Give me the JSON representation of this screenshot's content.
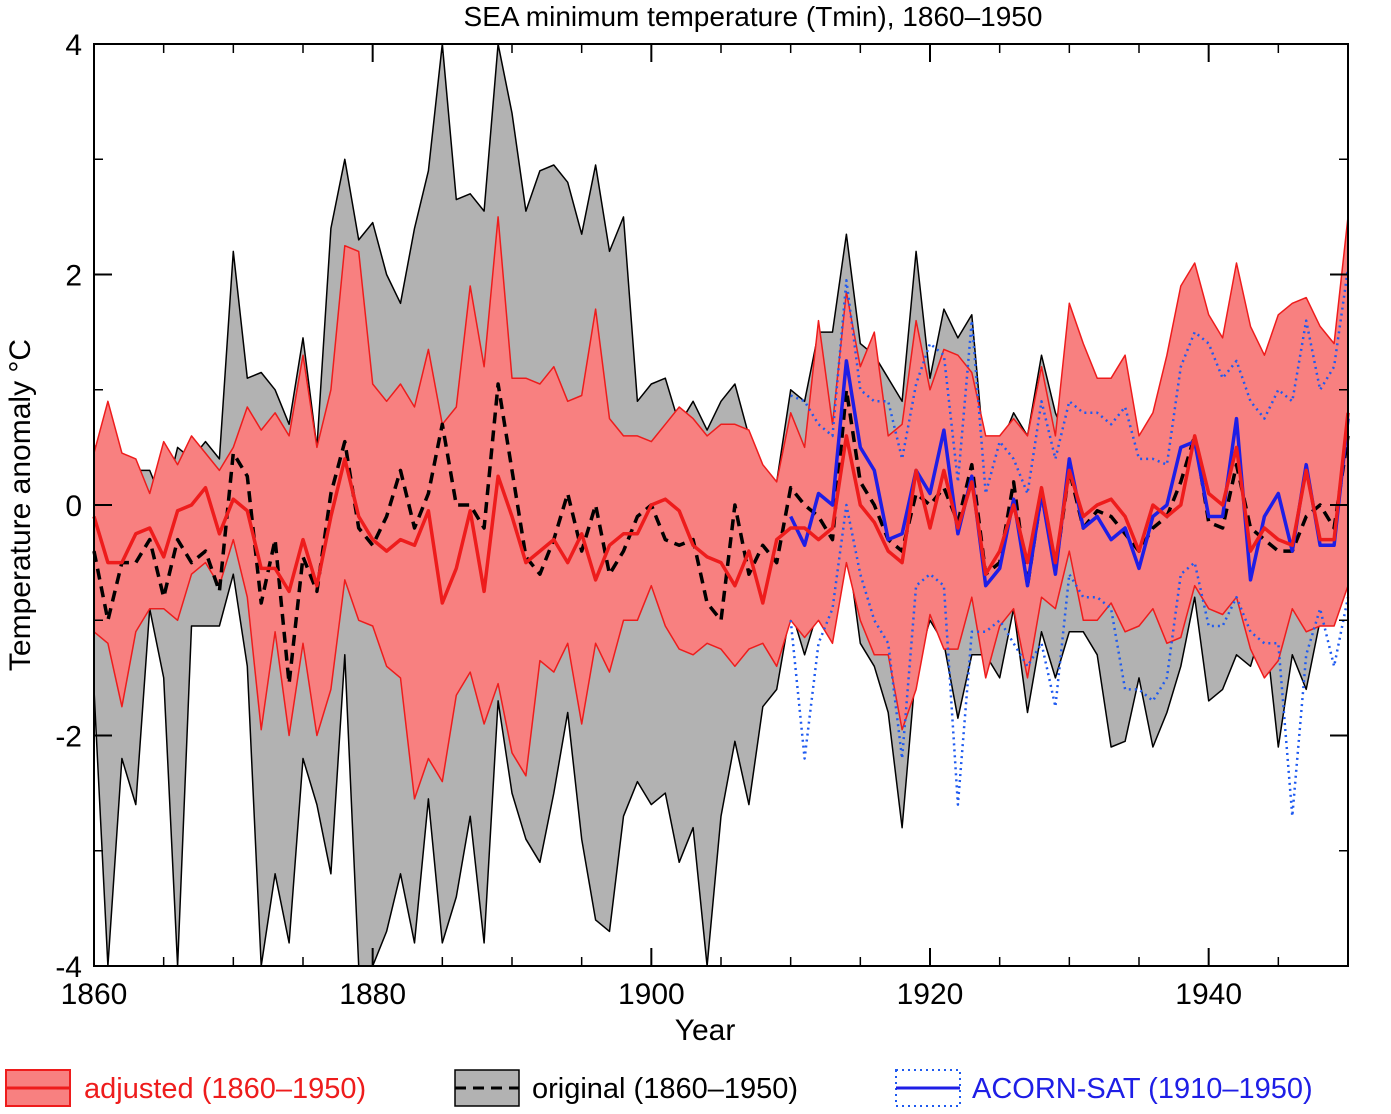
{
  "chart_data": {
    "type": "area",
    "title": "SEA minimum temperature (Tmin), 1860–1950",
    "xlabel": "Year",
    "ylabel": "Temperature anomaly °C",
    "xlim": [
      1860,
      1950
    ],
    "ylim": [
      -4,
      4
    ],
    "xticks": [
      1860,
      1880,
      1900,
      1920,
      1940
    ],
    "xtick_labels": [
      "1860",
      "1880",
      "1900",
      "1920",
      "1940"
    ],
    "yticks": [
      -4,
      -2,
      0,
      2,
      4
    ],
    "ytick_labels": [
      "-4",
      "-2",
      "0",
      "2",
      "4"
    ],
    "grid": false,
    "legend_position": "bottom",
    "legend": [
      {
        "key": "adjusted",
        "label": "adjusted (1860–1950)",
        "color": "#ee1c1c"
      },
      {
        "key": "original",
        "label": "original (1860–1950)",
        "color": "#000000"
      },
      {
        "key": "acorn",
        "label": "ACORN-SAT (1910–1950)",
        "color": "#1e1ee6"
      }
    ],
    "series": [
      {
        "key": "original_range",
        "style": "band",
        "color": "#b2b2b2",
        "x": [
          1860,
          1861,
          1862,
          1863,
          1864,
          1865,
          1866,
          1867,
          1868,
          1869,
          1870,
          1871,
          1872,
          1873,
          1874,
          1875,
          1876,
          1877,
          1878,
          1879,
          1880,
          1881,
          1882,
          1883,
          1884,
          1885,
          1886,
          1887,
          1888,
          1889,
          1890,
          1891,
          1892,
          1893,
          1894,
          1895,
          1896,
          1897,
          1898,
          1899,
          1900,
          1901,
          1902,
          1903,
          1904,
          1905,
          1906,
          1907,
          1908,
          1909,
          1910,
          1911,
          1912,
          1913,
          1914,
          1915,
          1916,
          1917,
          1918,
          1919,
          1920,
          1921,
          1922,
          1923,
          1924,
          1925,
          1926,
          1927,
          1928,
          1929,
          1930,
          1931,
          1932,
          1933,
          1934,
          1935,
          1936,
          1937,
          1938,
          1939,
          1940,
          1941,
          1942,
          1943,
          1944,
          1945,
          1946,
          1947,
          1948,
          1949,
          1950
        ],
        "upper": [
          0.5,
          0.6,
          0.4,
          0.3,
          0.3,
          0.0,
          0.5,
          0.4,
          0.55,
          0.4,
          2.2,
          1.1,
          1.15,
          1.0,
          0.7,
          1.45,
          0.5,
          2.4,
          3.0,
          2.3,
          2.45,
          2.0,
          1.75,
          2.4,
          2.9,
          4.0,
          2.65,
          2.7,
          2.55,
          4.0,
          3.4,
          2.55,
          2.9,
          2.95,
          2.8,
          2.35,
          2.95,
          2.2,
          2.5,
          0.9,
          1.05,
          1.1,
          0.7,
          0.9,
          0.65,
          0.9,
          1.05,
          0.6,
          0.3,
          0.2,
          1.0,
          0.9,
          1.5,
          1.5,
          2.35,
          1.4,
          1.3,
          1.1,
          0.9,
          2.2,
          1.1,
          1.7,
          1.45,
          1.65,
          0.3,
          0.5,
          0.8,
          0.6,
          1.3,
          0.8,
          0.5,
          0.6,
          0.7,
          0.5,
          0.4,
          0.4,
          0.3,
          0.5,
          0.6,
          0.7,
          0.5,
          0.3,
          0.7,
          0.3,
          0.2,
          0.3,
          0.2,
          0.3,
          0.2,
          0.5,
          0.7
        ],
        "lower": [
          -1.6,
          -4.0,
          -2.2,
          -2.6,
          -0.9,
          -1.5,
          -4.0,
          -1.05,
          -1.05,
          -1.05,
          -0.6,
          -1.4,
          -4.0,
          -3.2,
          -3.8,
          -2.2,
          -2.6,
          -3.2,
          -1.3,
          -4.0,
          -4.0,
          -3.7,
          -3.2,
          -3.8,
          -2.55,
          -3.8,
          -3.4,
          -2.7,
          -3.8,
          -1.7,
          -2.5,
          -2.9,
          -3.1,
          -2.5,
          -1.8,
          -2.9,
          -3.6,
          -3.7,
          -2.7,
          -2.4,
          -2.6,
          -2.5,
          -3.1,
          -2.8,
          -4.0,
          -2.7,
          -2.05,
          -2.6,
          -1.75,
          -1.6,
          -0.9,
          -1.3,
          -0.9,
          -0.5,
          -0.3,
          -1.2,
          -1.4,
          -1.8,
          -2.8,
          -1.4,
          -1.0,
          -1.2,
          -1.85,
          -1.3,
          -1.3,
          -1.5,
          -0.9,
          -1.8,
          -1.1,
          -1.5,
          -1.1,
          -1.1,
          -1.3,
          -2.1,
          -2.05,
          -1.5,
          -2.1,
          -1.8,
          -1.4,
          -0.8,
          -1.7,
          -1.6,
          -1.3,
          -1.4,
          -1.0,
          -2.1,
          -1.3,
          -1.6,
          -1.0,
          -1.0,
          -0.6
        ]
      },
      {
        "key": "adjusted_range",
        "style": "band",
        "color": "#f88080",
        "x": [
          1860,
          1861,
          1862,
          1863,
          1864,
          1865,
          1866,
          1867,
          1868,
          1869,
          1870,
          1871,
          1872,
          1873,
          1874,
          1875,
          1876,
          1877,
          1878,
          1879,
          1880,
          1881,
          1882,
          1883,
          1884,
          1885,
          1886,
          1887,
          1888,
          1889,
          1890,
          1891,
          1892,
          1893,
          1894,
          1895,
          1896,
          1897,
          1898,
          1899,
          1900,
          1901,
          1902,
          1903,
          1904,
          1905,
          1906,
          1907,
          1908,
          1909,
          1910,
          1911,
          1912,
          1913,
          1914,
          1915,
          1916,
          1917,
          1918,
          1919,
          1920,
          1921,
          1922,
          1923,
          1924,
          1925,
          1926,
          1927,
          1928,
          1929,
          1930,
          1931,
          1932,
          1933,
          1934,
          1935,
          1936,
          1937,
          1938,
          1939,
          1940,
          1941,
          1942,
          1943,
          1944,
          1945,
          1946,
          1947,
          1948,
          1949,
          1950
        ],
        "upper": [
          0.45,
          0.9,
          0.45,
          0.4,
          0.1,
          0.55,
          0.35,
          0.6,
          0.45,
          0.3,
          0.5,
          0.85,
          0.65,
          0.8,
          0.6,
          1.3,
          0.5,
          1.0,
          2.25,
          2.2,
          1.05,
          0.9,
          1.05,
          0.85,
          1.35,
          0.7,
          0.85,
          1.9,
          1.2,
          2.5,
          1.1,
          1.1,
          1.05,
          1.2,
          0.9,
          0.95,
          1.7,
          0.75,
          0.6,
          0.6,
          0.55,
          0.7,
          0.85,
          0.75,
          0.6,
          0.7,
          0.7,
          0.65,
          0.35,
          0.2,
          0.8,
          0.5,
          1.6,
          0.7,
          1.85,
          1.2,
          1.5,
          0.6,
          0.7,
          1.6,
          1.0,
          1.35,
          1.3,
          1.15,
          0.6,
          0.6,
          0.75,
          0.6,
          1.2,
          0.6,
          1.75,
          1.4,
          1.1,
          1.1,
          1.3,
          0.6,
          0.8,
          1.3,
          1.9,
          2.1,
          1.65,
          1.45,
          2.1,
          1.55,
          1.3,
          1.65,
          1.75,
          1.8,
          1.55,
          1.4,
          2.5
        ],
        "lower": [
          -1.1,
          -1.2,
          -1.75,
          -1.1,
          -0.9,
          -0.9,
          -1.0,
          -0.6,
          -0.5,
          -0.7,
          -0.3,
          -0.8,
          -1.95,
          -1.1,
          -2.0,
          -1.2,
          -2.0,
          -1.6,
          -0.65,
          -1.0,
          -1.05,
          -1.4,
          -1.5,
          -2.55,
          -2.2,
          -2.4,
          -1.65,
          -1.45,
          -1.9,
          -1.55,
          -2.15,
          -2.35,
          -1.35,
          -1.45,
          -1.2,
          -1.9,
          -1.2,
          -1.45,
          -1.0,
          -1.0,
          -0.7,
          -1.05,
          -1.25,
          -1.3,
          -1.2,
          -1.25,
          -1.4,
          -1.25,
          -1.2,
          -1.4,
          -1.0,
          -1.15,
          -1.0,
          -1.2,
          -0.5,
          -1.0,
          -1.3,
          -1.3,
          -1.95,
          -1.6,
          -0.95,
          -1.25,
          -1.25,
          -0.8,
          -1.5,
          -1.05,
          -0.9,
          -1.5,
          -0.8,
          -0.9,
          -0.4,
          -1.0,
          -1.0,
          -0.85,
          -1.1,
          -1.05,
          -0.9,
          -1.2,
          -1.15,
          -0.7,
          -0.9,
          -0.95,
          -0.8,
          -1.25,
          -1.5,
          -1.35,
          -0.9,
          -1.1,
          -1.05,
          -1.05,
          -0.7
        ]
      },
      {
        "key": "acorn_range",
        "style": "dotted-band",
        "color": "#1e5af0",
        "x": [
          1910,
          1911,
          1912,
          1913,
          1914,
          1915,
          1916,
          1917,
          1918,
          1919,
          1920,
          1921,
          1922,
          1923,
          1924,
          1925,
          1926,
          1927,
          1928,
          1929,
          1930,
          1931,
          1932,
          1933,
          1934,
          1935,
          1936,
          1937,
          1938,
          1939,
          1940,
          1941,
          1942,
          1943,
          1944,
          1945,
          1946,
          1947,
          1948,
          1949,
          1950
        ],
        "upper": [
          0.95,
          0.9,
          0.7,
          0.6,
          1.95,
          1.0,
          0.9,
          0.9,
          0.4,
          1.05,
          1.4,
          1.3,
          0.2,
          1.6,
          0.1,
          0.55,
          0.4,
          0.1,
          0.9,
          0.4,
          0.9,
          0.8,
          0.8,
          0.7,
          0.85,
          0.4,
          0.4,
          0.35,
          1.2,
          1.5,
          1.4,
          1.1,
          1.25,
          0.9,
          0.75,
          1.0,
          0.9,
          1.6,
          1.0,
          1.2,
          2.05
        ],
        "lower": [
          -1.0,
          -2.2,
          -1.2,
          -0.9,
          0.0,
          -0.6,
          -1.0,
          -1.2,
          -2.2,
          -0.7,
          -0.6,
          -0.7,
          -2.6,
          -1.1,
          -1.1,
          -1.0,
          -1.2,
          -1.4,
          -1.2,
          -1.75,
          -0.6,
          -0.8,
          -0.8,
          -0.9,
          -1.6,
          -1.6,
          -1.7,
          -1.5,
          -0.6,
          -0.5,
          -1.05,
          -1.05,
          -0.8,
          -1.1,
          -1.2,
          -1.2,
          -2.7,
          -1.3,
          -0.9,
          -1.4,
          -0.8
        ]
      },
      {
        "key": "original_mean",
        "style": "dashed",
        "color": "#000000",
        "x": [
          1860,
          1861,
          1862,
          1863,
          1864,
          1865,
          1866,
          1867,
          1868,
          1869,
          1870,
          1871,
          1872,
          1873,
          1874,
          1875,
          1876,
          1877,
          1878,
          1879,
          1880,
          1881,
          1882,
          1883,
          1884,
          1885,
          1886,
          1887,
          1888,
          1889,
          1890,
          1891,
          1892,
          1893,
          1894,
          1895,
          1896,
          1897,
          1898,
          1899,
          1900,
          1901,
          1902,
          1903,
          1904,
          1905,
          1906,
          1907,
          1908,
          1909,
          1910,
          1911,
          1912,
          1913,
          1914,
          1915,
          1916,
          1917,
          1918,
          1919,
          1920,
          1921,
          1922,
          1923,
          1924,
          1925,
          1926,
          1927,
          1928,
          1929,
          1930,
          1931,
          1932,
          1933,
          1934,
          1935,
          1936,
          1937,
          1938,
          1939,
          1940,
          1941,
          1942,
          1943,
          1944,
          1945,
          1946,
          1947,
          1948,
          1949,
          1950
        ],
        "values": [
          -0.4,
          -1.0,
          -0.5,
          -0.5,
          -0.3,
          -0.8,
          -0.3,
          -0.5,
          -0.4,
          -0.75,
          0.45,
          0.25,
          -0.85,
          -0.3,
          -1.55,
          -0.45,
          -0.75,
          0.1,
          0.55,
          -0.2,
          -0.35,
          -0.1,
          0.3,
          -0.2,
          0.1,
          0.7,
          0.0,
          0.0,
          -0.2,
          1.05,
          0.3,
          -0.45,
          -0.6,
          -0.3,
          0.1,
          -0.4,
          0.0,
          -0.6,
          -0.4,
          -0.1,
          0.0,
          -0.3,
          -0.35,
          -0.3,
          -0.85,
          -1.0,
          0.0,
          -0.6,
          -0.35,
          -0.5,
          0.15,
          0.0,
          -0.1,
          -0.3,
          1.0,
          0.2,
          0.0,
          -0.3,
          -0.4,
          0.1,
          0.0,
          0.15,
          -0.15,
          0.35,
          -0.6,
          -0.5,
          0.2,
          -0.7,
          0.1,
          -0.55,
          0.3,
          -0.2,
          -0.05,
          -0.1,
          -0.25,
          -0.4,
          -0.2,
          -0.1,
          0.2,
          0.6,
          -0.15,
          -0.2,
          0.35,
          -0.2,
          -0.3,
          -0.4,
          -0.4,
          -0.1,
          0.0,
          -0.2,
          0.6
        ]
      },
      {
        "key": "adjusted_mean",
        "style": "solid",
        "color": "#ee1c1c",
        "x": [
          1860,
          1861,
          1862,
          1863,
          1864,
          1865,
          1866,
          1867,
          1868,
          1869,
          1870,
          1871,
          1872,
          1873,
          1874,
          1875,
          1876,
          1877,
          1878,
          1879,
          1880,
          1881,
          1882,
          1883,
          1884,
          1885,
          1886,
          1887,
          1888,
          1889,
          1890,
          1891,
          1892,
          1893,
          1894,
          1895,
          1896,
          1897,
          1898,
          1899,
          1900,
          1901,
          1902,
          1903,
          1904,
          1905,
          1906,
          1907,
          1908,
          1909,
          1910,
          1911,
          1912,
          1913,
          1914,
          1915,
          1916,
          1917,
          1918,
          1919,
          1920,
          1921,
          1922,
          1923,
          1924,
          1925,
          1926,
          1927,
          1928,
          1929,
          1930,
          1931,
          1932,
          1933,
          1934,
          1935,
          1936,
          1937,
          1938,
          1939,
          1940,
          1941,
          1942,
          1943,
          1944,
          1945,
          1946,
          1947,
          1948,
          1949,
          1950
        ],
        "values": [
          -0.1,
          -0.5,
          -0.5,
          -0.25,
          -0.2,
          -0.45,
          -0.05,
          0.0,
          0.15,
          -0.25,
          0.05,
          -0.05,
          -0.55,
          -0.55,
          -0.75,
          -0.3,
          -0.7,
          -0.1,
          0.4,
          -0.1,
          -0.3,
          -0.4,
          -0.3,
          -0.35,
          -0.05,
          -0.85,
          -0.55,
          -0.05,
          -0.75,
          0.25,
          -0.1,
          -0.5,
          -0.4,
          -0.3,
          -0.5,
          -0.25,
          -0.65,
          -0.35,
          -0.25,
          -0.25,
          0.0,
          0.05,
          -0.05,
          -0.35,
          -0.45,
          -0.5,
          -0.7,
          -0.4,
          -0.85,
          -0.3,
          -0.2,
          -0.2,
          -0.3,
          -0.2,
          0.6,
          0.0,
          -0.15,
          -0.4,
          -0.5,
          0.3,
          -0.2,
          0.3,
          -0.2,
          0.2,
          -0.6,
          -0.4,
          0.0,
          -0.5,
          0.15,
          -0.5,
          0.3,
          -0.1,
          0.0,
          0.05,
          -0.1,
          -0.4,
          0.0,
          -0.1,
          0.0,
          0.6,
          0.1,
          0.0,
          0.5,
          -0.4,
          -0.2,
          -0.3,
          -0.35,
          0.3,
          -0.3,
          -0.3,
          0.8
        ]
      },
      {
        "key": "acorn_mean",
        "style": "solid",
        "color": "#1e1ee6",
        "x": [
          1910,
          1911,
          1912,
          1913,
          1914,
          1915,
          1916,
          1917,
          1918,
          1919,
          1920,
          1921,
          1922,
          1923,
          1924,
          1925,
          1926,
          1927,
          1928,
          1929,
          1930,
          1931,
          1932,
          1933,
          1934,
          1935,
          1936,
          1937,
          1938,
          1939,
          1940,
          1941,
          1942,
          1943,
          1944,
          1945,
          1946,
          1947,
          1948,
          1949,
          1950
        ],
        "values": [
          -0.1,
          -0.35,
          0.1,
          0.0,
          1.25,
          0.5,
          0.3,
          -0.3,
          -0.25,
          0.3,
          0.1,
          0.65,
          -0.25,
          0.25,
          -0.7,
          -0.55,
          0.05,
          -0.7,
          0.1,
          -0.6,
          0.4,
          -0.2,
          -0.1,
          -0.3,
          -0.2,
          -0.55,
          -0.1,
          0.0,
          0.5,
          0.55,
          -0.1,
          -0.1,
          0.75,
          -0.65,
          -0.1,
          0.1,
          -0.4,
          0.35,
          -0.35,
          -0.35,
          0.75
        ]
      }
    ]
  }
}
